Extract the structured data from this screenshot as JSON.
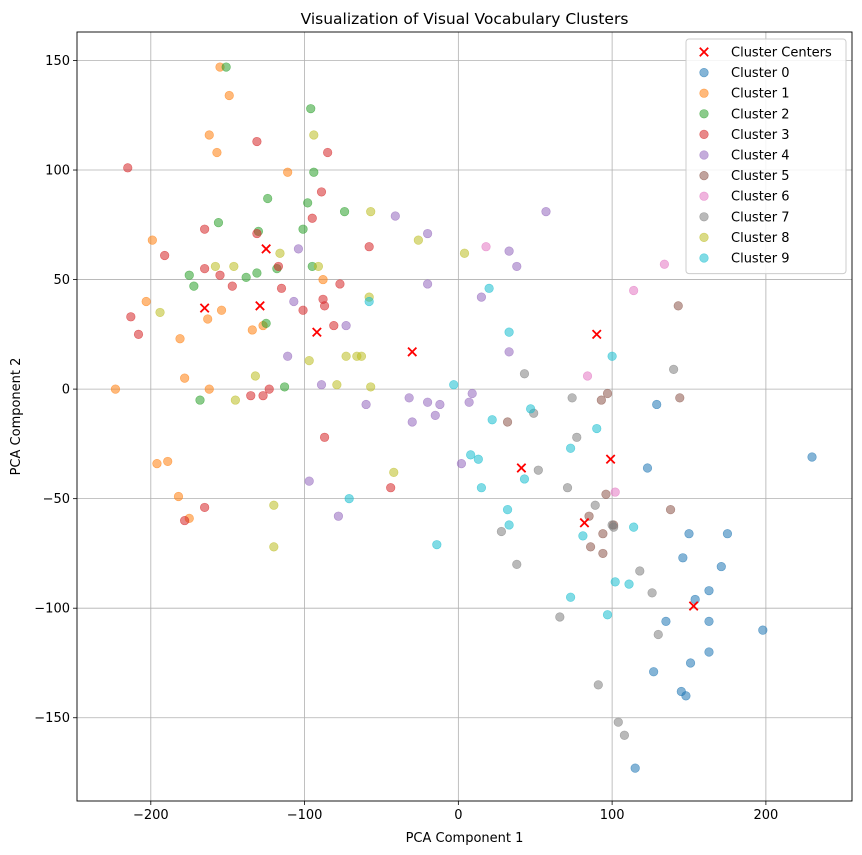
{
  "chart_data": {
    "type": "scatter",
    "title": "Visualization of Visual Vocabulary Clusters",
    "xlabel": "PCA Component 1",
    "ylabel": "PCA Component 2",
    "xlim": [
      -248,
      256
    ],
    "ylim": [
      -188,
      163
    ],
    "xticks": [
      -200,
      -100,
      0,
      100,
      200
    ],
    "yticks": [
      -150,
      -100,
      -50,
      0,
      50,
      100,
      150
    ],
    "xtick_labels": [
      "−200",
      "−100",
      "0",
      "100",
      "200"
    ],
    "ytick_labels": [
      "−150",
      "−100",
      "−50",
      "0",
      "50",
      "100",
      "150"
    ],
    "grid": true,
    "legend_position": "top-right",
    "centers": {
      "name": "Cluster Centers",
      "color": "#ff0000",
      "marker": "x",
      "points": [
        [
          -165,
          37
        ],
        [
          -125,
          64
        ],
        [
          -129,
          38
        ],
        [
          -92,
          26
        ],
        [
          -30,
          17
        ],
        [
          41,
          -36
        ],
        [
          82,
          -61
        ],
        [
          90,
          25
        ],
        [
          99,
          -32
        ],
        [
          153,
          -99
        ]
      ]
    },
    "series": [
      {
        "name": "Cluster 0",
        "color": "#1f77b4",
        "points": [
          [
            230,
            -31
          ],
          [
            198,
            -110
          ],
          [
            175,
            -66
          ],
          [
            171,
            -81
          ],
          [
            163,
            -92
          ],
          [
            163,
            -106
          ],
          [
            163,
            -120
          ],
          [
            154,
            -96
          ],
          [
            150,
            -66
          ],
          [
            151,
            -125
          ],
          [
            145,
            -138
          ],
          [
            148,
            -140
          ],
          [
            146,
            -77
          ],
          [
            135,
            -106
          ],
          [
            127,
            -129
          ],
          [
            129,
            -7
          ],
          [
            123,
            -36
          ],
          [
            115,
            -173
          ]
        ]
      },
      {
        "name": "Cluster 1",
        "color": "#ff7f0e",
        "points": [
          [
            -155,
            147
          ],
          [
            -149,
            134
          ],
          [
            -162,
            116
          ],
          [
            -157,
            108
          ],
          [
            -111,
            99
          ],
          [
            -199,
            68
          ],
          [
            -203,
            40
          ],
          [
            -163,
            32
          ],
          [
            -154,
            36
          ],
          [
            -134,
            27
          ],
          [
            -127,
            29
          ],
          [
            -88,
            50
          ],
          [
            -181,
            23
          ],
          [
            -178,
            5
          ],
          [
            -162,
            0
          ],
          [
            -223,
            0
          ],
          [
            -196,
            -34
          ],
          [
            -189,
            -33
          ],
          [
            -182,
            -49
          ],
          [
            -175,
            -59
          ]
        ]
      },
      {
        "name": "Cluster 2",
        "color": "#2ca02c",
        "points": [
          [
            -151,
            147
          ],
          [
            -96,
            128
          ],
          [
            -94,
            99
          ],
          [
            -98,
            85
          ],
          [
            -124,
            87
          ],
          [
            -156,
            76
          ],
          [
            -130,
            72
          ],
          [
            -74,
            81
          ],
          [
            -101,
            73
          ],
          [
            -175,
            52
          ],
          [
            -172,
            47
          ],
          [
            -131,
            53
          ],
          [
            -138,
            51
          ],
          [
            -95,
            56
          ],
          [
            -118,
            55
          ],
          [
            -125,
            30
          ],
          [
            -113,
            1
          ],
          [
            -168,
            -5
          ]
        ]
      },
      {
        "name": "Cluster 3",
        "color": "#d62728",
        "points": [
          [
            -215,
            101
          ],
          [
            -131,
            113
          ],
          [
            -85,
            108
          ],
          [
            -89,
            90
          ],
          [
            -95,
            78
          ],
          [
            -191,
            61
          ],
          [
            -165,
            73
          ],
          [
            -131,
            71
          ],
          [
            -58,
            65
          ],
          [
            -165,
            55
          ],
          [
            -155,
            52
          ],
          [
            -117,
            56
          ],
          [
            -147,
            47
          ],
          [
            -115,
            46
          ],
          [
            -77,
            48
          ],
          [
            -213,
            33
          ],
          [
            -208,
            25
          ],
          [
            -88,
            41
          ],
          [
            -87,
            38
          ],
          [
            -101,
            36
          ],
          [
            -81,
            29
          ],
          [
            -123,
            0
          ],
          [
            -135,
            -3
          ],
          [
            -127,
            -3
          ],
          [
            -87,
            -22
          ],
          [
            -44,
            -45
          ],
          [
            -165,
            -54
          ],
          [
            -178,
            -60
          ]
        ]
      },
      {
        "name": "Cluster 4",
        "color": "#9467bd",
        "points": [
          [
            57,
            81
          ],
          [
            -41,
            79
          ],
          [
            -20,
            71
          ],
          [
            -104,
            64
          ],
          [
            33,
            63
          ],
          [
            38,
            56
          ],
          [
            -20,
            48
          ],
          [
            15,
            42
          ],
          [
            -107,
            40
          ],
          [
            -73,
            29
          ],
          [
            -111,
            15
          ],
          [
            33,
            17
          ],
          [
            -89,
            2
          ],
          [
            -60,
            -7
          ],
          [
            -32,
            -4
          ],
          [
            -30,
            -15
          ],
          [
            -20,
            -6
          ],
          [
            -15,
            -12
          ],
          [
            -12,
            -7
          ],
          [
            9,
            -2
          ],
          [
            7,
            -6
          ],
          [
            2,
            -34
          ],
          [
            -97,
            -42
          ],
          [
            -78,
            -58
          ]
        ]
      },
      {
        "name": "Cluster 5",
        "color": "#8c564b",
        "points": [
          [
            143,
            38
          ],
          [
            144,
            -4
          ],
          [
            96,
            -48
          ],
          [
            97,
            -2
          ],
          [
            93,
            -5
          ],
          [
            32,
            -15
          ],
          [
            138,
            -55
          ],
          [
            101,
            -62
          ],
          [
            85,
            -58
          ],
          [
            94,
            -66
          ],
          [
            86,
            -72
          ],
          [
            94,
            -75
          ]
        ]
      },
      {
        "name": "Cluster 6",
        "color": "#e377c2",
        "points": [
          [
            18,
            65
          ],
          [
            134,
            57
          ],
          [
            114,
            45
          ],
          [
            84,
            6
          ],
          [
            102,
            -47
          ]
        ]
      },
      {
        "name": "Cluster 7",
        "color": "#7f7f7f",
        "points": [
          [
            140,
            9
          ],
          [
            43,
            7
          ],
          [
            74,
            -4
          ],
          [
            49,
            -11
          ],
          [
            77,
            -22
          ],
          [
            52,
            -37
          ],
          [
            71,
            -45
          ],
          [
            89,
            -53
          ],
          [
            100,
            -62
          ],
          [
            101,
            -63
          ],
          [
            118,
            -83
          ],
          [
            28,
            -65
          ],
          [
            38,
            -80
          ],
          [
            126,
            -93
          ],
          [
            130,
            -112
          ],
          [
            66,
            -104
          ],
          [
            91,
            -135
          ],
          [
            104,
            -152
          ],
          [
            108,
            -158
          ]
        ]
      },
      {
        "name": "Cluster 8",
        "color": "#bcbd22",
        "points": [
          [
            -94,
            116
          ],
          [
            -57,
            81
          ],
          [
            -58,
            42
          ],
          [
            -26,
            68
          ],
          [
            4,
            62
          ],
          [
            -116,
            62
          ],
          [
            -146,
            56
          ],
          [
            -158,
            56
          ],
          [
            -194,
            35
          ],
          [
            -91,
            56
          ],
          [
            -97,
            13
          ],
          [
            -73,
            15
          ],
          [
            -66,
            15
          ],
          [
            -63,
            15
          ],
          [
            -57,
            1
          ],
          [
            -79,
            2
          ],
          [
            -132,
            6
          ],
          [
            -145,
            -5
          ],
          [
            -42,
            -38
          ],
          [
            -120,
            -53
          ],
          [
            -120,
            -72
          ]
        ]
      },
      {
        "name": "Cluster 9",
        "color": "#17becf",
        "points": [
          [
            -58,
            40
          ],
          [
            20,
            46
          ],
          [
            33,
            26
          ],
          [
            100,
            15
          ],
          [
            -3,
            2
          ],
          [
            22,
            -14
          ],
          [
            47,
            -9
          ],
          [
            90,
            -18
          ],
          [
            8,
            -30
          ],
          [
            13,
            -32
          ],
          [
            73,
            -27
          ],
          [
            15,
            -45
          ],
          [
            43,
            -41
          ],
          [
            -71,
            -50
          ],
          [
            32,
            -55
          ],
          [
            33,
            -62
          ],
          [
            81,
            -67
          ],
          [
            114,
            -63
          ],
          [
            -14,
            -71
          ],
          [
            102,
            -88
          ],
          [
            111,
            -89
          ],
          [
            73,
            -95
          ],
          [
            97,
            -103
          ]
        ]
      }
    ]
  }
}
